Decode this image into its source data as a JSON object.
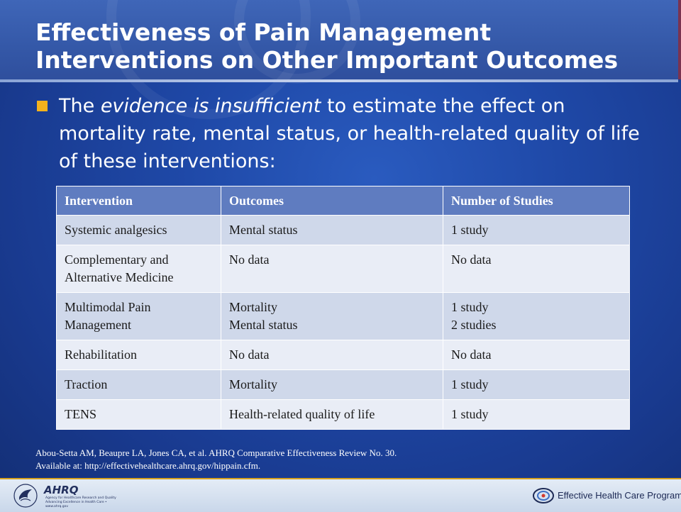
{
  "slide": {
    "title": "Effectiveness of Pain Management Interventions on Other Important Outcomes",
    "bullet": {
      "before": "The ",
      "emphasis": "evidence is insufficient",
      "after": " to estimate the effect on mortality rate, mental status, or health-related quality of life of these interventions:"
    }
  },
  "table": {
    "headers": [
      "Intervention",
      "Outcomes",
      "Number of Studies"
    ],
    "rows": [
      {
        "intervention": "Systemic analgesics",
        "outcomes": [
          "Mental status"
        ],
        "studies": [
          "1 study"
        ]
      },
      {
        "intervention": "Complementary and Alternative Medicine",
        "outcomes": [
          "No data"
        ],
        "studies": [
          "No data"
        ]
      },
      {
        "intervention": "Multimodal Pain Management",
        "outcomes": [
          "Mortality",
          "Mental status"
        ],
        "studies": [
          "1 study",
          "2 studies"
        ]
      },
      {
        "intervention": "Rehabilitation",
        "outcomes": [
          "No data"
        ],
        "studies": [
          "No data"
        ]
      },
      {
        "intervention": "Traction",
        "outcomes": [
          "Mortality"
        ],
        "studies": [
          "1 study"
        ]
      },
      {
        "intervention": "TENS",
        "outcomes": [
          "Health-related quality of life"
        ],
        "studies": [
          "1 study"
        ]
      }
    ]
  },
  "citation": {
    "line1": "Abou-Setta AM, Beaupre LA, Jones CA, et al. AHRQ Comparative Effectiveness Review No. 30.",
    "line2": "Available at:  http://effectivehealthcare.ahrq.gov/hippain.cfm."
  },
  "footer": {
    "ahrq_mark": "AHRQ",
    "ahrq_sub_1": "Agency for Healthcare Research and Quality",
    "ahrq_sub_2": "Advancing Excellence in Health Care • www.ahrq.gov",
    "ehc_label": "Effective Health Care Program",
    "icons": [
      "hhs-eagle-icon",
      "ahrq-logo-icon",
      "ehc-swirl-icon"
    ],
    "colors": {
      "background": "#1f49a8",
      "title_band": "#3559a9",
      "header_row": "#5f7cc0",
      "row_odd": "#cfd8ea",
      "row_even": "#e9edf6",
      "bullet": "#f5b21c"
    }
  }
}
